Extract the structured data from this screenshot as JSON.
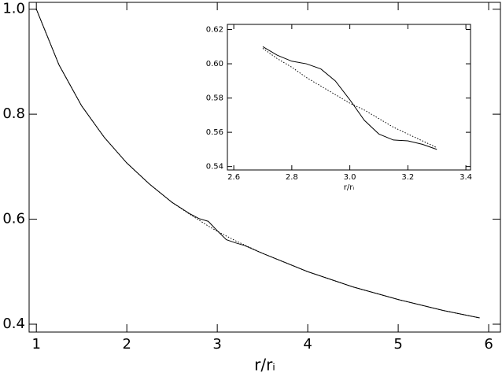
{
  "chart_data": [
    {
      "type": "line",
      "xlabel": "r/rᵢ",
      "x": [
        1,
        1.25,
        1.5,
        1.75,
        2,
        2.25,
        2.5,
        2.7,
        2.8,
        2.9,
        3.0,
        3.1,
        3.2,
        3.3,
        3.5,
        4,
        4.5,
        5,
        5.5,
        5.9
      ],
      "series": [
        {
          "color": "#000000",
          "style": "dotted",
          "values": [
            1,
            0.894,
            0.816,
            0.756,
            0.707,
            0.667,
            0.632,
            0.609,
            0.598,
            0.587,
            0.577,
            0.568,
            0.559,
            0.551,
            0.535,
            0.5,
            0.471,
            0.447,
            0.426,
            0.412
          ]
        },
        {
          "color": "#000000",
          "style": "solid",
          "values": [
            1,
            0.894,
            0.816,
            0.756,
            0.707,
            0.667,
            0.632,
            0.61,
            0.601,
            0.596,
            0.578,
            0.561,
            0.555,
            0.55,
            0.535,
            0.5,
            0.471,
            0.447,
            0.426,
            0.412
          ]
        }
      ],
      "xlim": [
        0.92,
        6.13
      ],
      "ylim": [
        0.385,
        1.013
      ],
      "xticks": [
        1,
        2,
        3,
        4,
        5,
        6
      ],
      "yticks": [
        0.4,
        0.6,
        0.8,
        {
          "value": 1,
          "label": "1.0"
        }
      ]
    },
    {
      "type": "line",
      "xlabel": "r/rᵢ",
      "x": [
        2.7,
        2.75,
        2.8,
        2.85,
        2.9,
        2.95,
        3.0,
        3.05,
        3.1,
        3.15,
        3.2,
        3.25,
        3.3
      ],
      "series": [
        {
          "color": "#000000",
          "style": "dotted",
          "values": [
            0.609,
            0.603,
            0.598,
            0.592,
            0.587,
            0.582,
            0.577,
            0.573,
            0.568,
            0.563,
            0.559,
            0.555,
            0.551
          ]
        },
        {
          "color": "#000000",
          "style": "solid",
          "values": [
            0.61,
            0.605,
            0.6015,
            0.6,
            0.597,
            0.59,
            0.579,
            0.567,
            0.559,
            0.5555,
            0.555,
            0.553,
            0.55
          ]
        }
      ],
      "xlim": [
        2.578,
        3.416
      ],
      "ylim": [
        0.538,
        0.623
      ],
      "xticks": [
        2.6,
        2.8,
        {
          "value": 3,
          "label": "3.0"
        },
        3.2,
        3.4
      ],
      "yticks": [
        0.54,
        0.56,
        0.58,
        {
          "value": 0.6,
          "label": "0.60"
        },
        0.62
      ]
    }
  ]
}
